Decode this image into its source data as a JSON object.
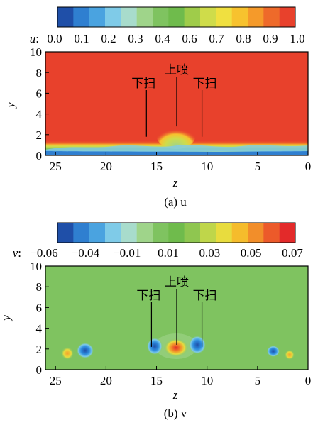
{
  "chart_data": [
    {
      "type": "heatmap",
      "variable": "u",
      "title": "",
      "colorbar": {
        "label": "u",
        "tick_labels": [
          "0.0",
          "0.1",
          "0.2",
          "0.3",
          "0.4",
          "0.6",
          "0.7",
          "0.8",
          "0.9",
          "1.0"
        ],
        "colors": [
          "#1f4fa8",
          "#2f7fd0",
          "#4aa3e0",
          "#7fcbe8",
          "#a8dccc",
          "#9fd48a",
          "#7fc360",
          "#6fbb4c",
          "#9fcc4a",
          "#cfdc4a",
          "#f0e040",
          "#f7c22e",
          "#f59a2a",
          "#ee6a2a",
          "#e8412c"
        ]
      },
      "xlabel": "z",
      "ylabel": "y",
      "xticks": [
        25,
        20,
        15,
        10,
        5,
        0
      ],
      "yticks": [
        0,
        2,
        4,
        6,
        8,
        10
      ],
      "xlim": [
        26,
        0
      ],
      "ylim": [
        0,
        10
      ],
      "annotations": [
        {
          "text": "上喷",
          "z": 13,
          "y": 2.8
        },
        {
          "text": "下扫",
          "z": 16,
          "y": 1.8
        },
        {
          "text": "下扫",
          "z": 10.5,
          "y": 1.8
        }
      ],
      "caption": "(a)  u"
    },
    {
      "type": "heatmap",
      "variable": "v",
      "title": "",
      "colorbar": {
        "label": "v",
        "tick_labels": [
          "−0.06",
          "−0.04",
          "−0.01",
          "0.01",
          "0.03",
          "0.05",
          "0.07"
        ],
        "colors": [
          "#1f4fa8",
          "#2f7fd0",
          "#4aa3e0",
          "#7fcbe8",
          "#a8dccc",
          "#9fd48a",
          "#7fc360",
          "#6fbb4c",
          "#8fc650",
          "#bfd64a",
          "#e8dc3e",
          "#f5bc2c",
          "#f28e2a",
          "#ec5a2a",
          "#e32a2a"
        ]
      },
      "xlabel": "z",
      "ylabel": "y",
      "xticks": [
        25,
        20,
        15,
        10,
        5,
        0
      ],
      "yticks": [
        0,
        2,
        4,
        6,
        8,
        10
      ],
      "xlim": [
        26,
        0
      ],
      "ylim": [
        0,
        10
      ],
      "annotations": [
        {
          "text": "上喷",
          "z": 13,
          "y": 2.4
        },
        {
          "text": "下扫",
          "z": 15.5,
          "y": 2.2
        },
        {
          "text": "下扫",
          "z": 10.5,
          "y": 2.2
        }
      ],
      "caption": "(b)  v"
    }
  ]
}
